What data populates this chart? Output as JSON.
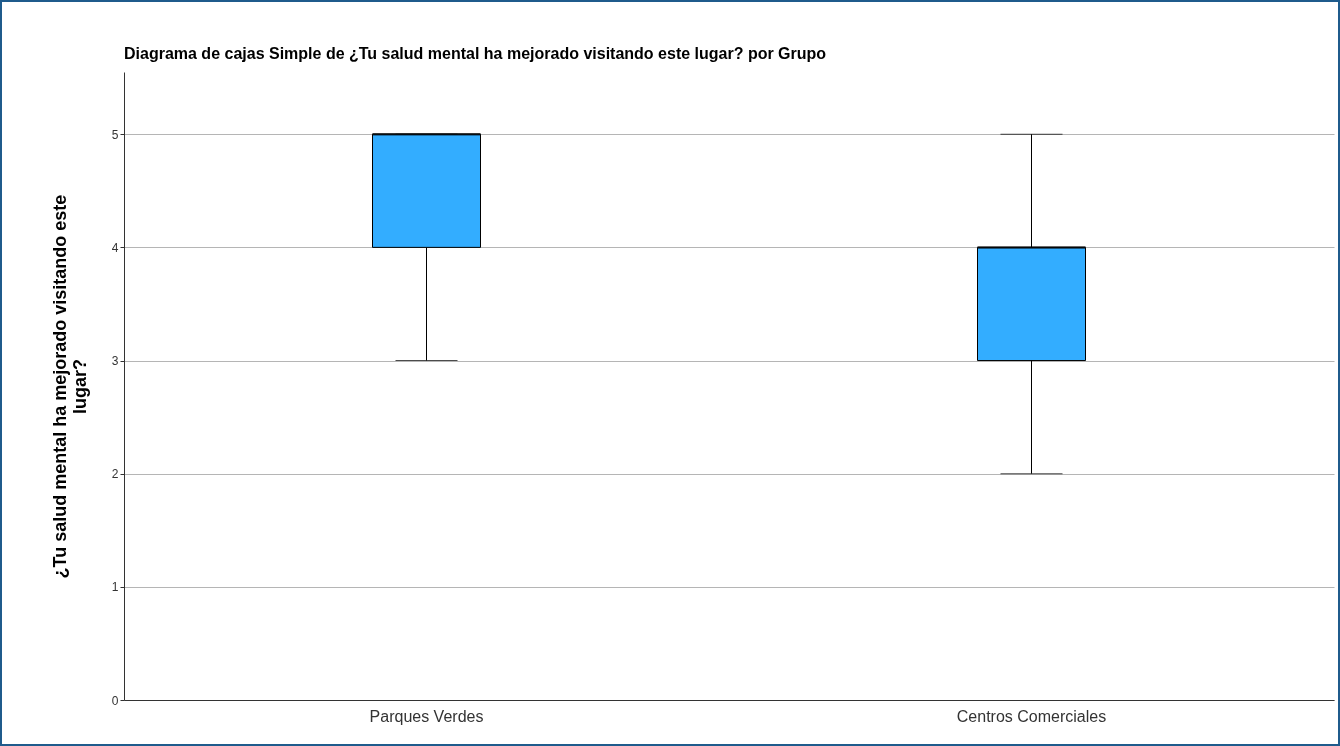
{
  "chart_data": {
    "type": "box",
    "title": "Diagrama de cajas Simple de ¿Tu salud mental ha mejorado visitando este lugar? por Grupo",
    "ylabel": "¿Tu salud mental ha mejorado visitando este lugar?",
    "categories": [
      "Parques Verdes",
      "Centros Comerciales"
    ],
    "series": [
      {
        "color": "#33adff",
        "boxes": [
          {
            "low": 3,
            "q1": 4,
            "median": 5,
            "q3": 5,
            "high": 5
          },
          {
            "low": 2,
            "q1": 3,
            "median": 4,
            "q3": 4,
            "high": 5
          }
        ]
      }
    ],
    "ylim": [
      0,
      5.55
    ],
    "yticks": [
      0,
      1,
      2,
      3,
      4,
      5
    ],
    "grid": "y"
  }
}
